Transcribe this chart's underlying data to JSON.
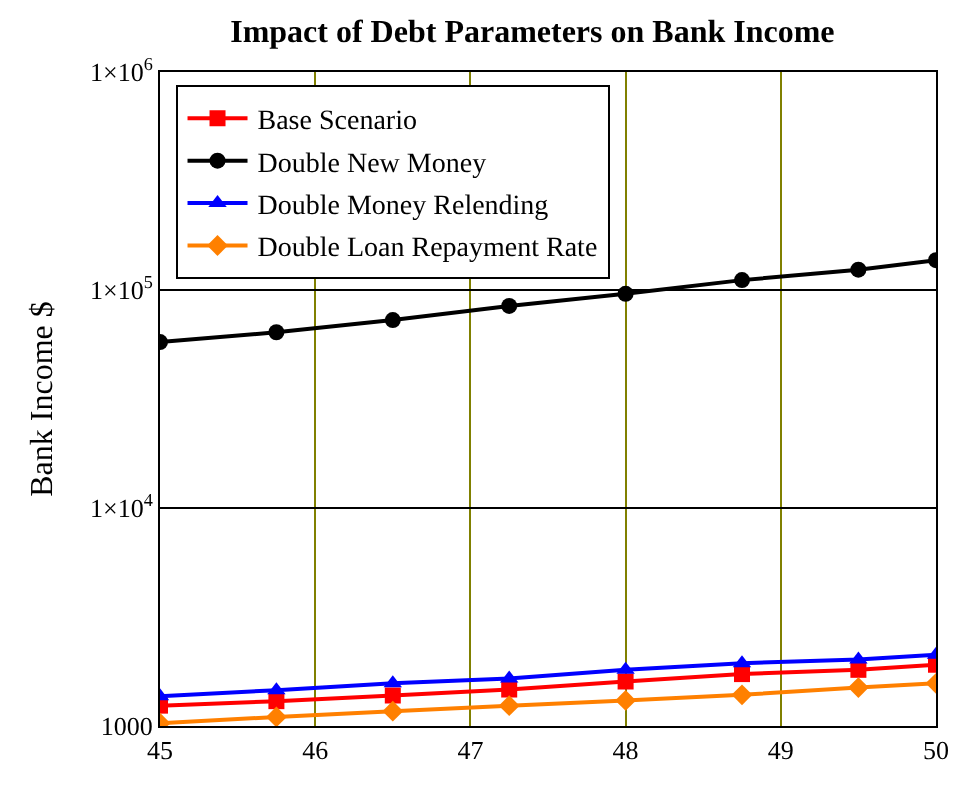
{
  "chart_data": {
    "type": "line",
    "title": "Impact of Debt Parameters on Bank Income",
    "ylabel": "Bank Income $",
    "x": [
      45,
      45.75,
      46.5,
      47.25,
      48,
      48.75,
      49.5,
      50
    ],
    "series": [
      {
        "name": "Base Scenario",
        "color": "#ff0000",
        "marker": "square",
        "values": [
          1240,
          1300,
          1380,
          1470,
          1600,
          1730,
          1810,
          1910
        ]
      },
      {
        "name": "Double New Money",
        "color": "#000000",
        "marker": "circle",
        "values": [
          57700,
          64000,
          72800,
          84500,
          96000,
          111000,
          124000,
          137000
        ]
      },
      {
        "name": "Double Money Relending",
        "color": "#0000ff",
        "marker": "triangle",
        "values": [
          1370,
          1460,
          1570,
          1650,
          1810,
          1940,
          2020,
          2120
        ]
      },
      {
        "name": "Double Loan Repayment Rate",
        "color": "#ff8000",
        "marker": "diamond",
        "values": [
          1030,
          1100,
          1170,
          1240,
          1310,
          1390,
          1500,
          1570
        ]
      }
    ],
    "log": "y",
    "xlim": [
      45,
      50
    ],
    "xticks": [
      45,
      46,
      47,
      48,
      49,
      50
    ],
    "ylim": [
      1000,
      1000000
    ],
    "yticks": [
      1000,
      {
        "value": 10000,
        "label": "1×10$^{4}$"
      },
      {
        "value": 100000,
        "label": "1×10$^{5}$"
      },
      {
        "value": 1000000,
        "label": "1×10$^{6}$"
      }
    ],
    "grid": true,
    "legend": "top left",
    "line_style": "solid"
  }
}
